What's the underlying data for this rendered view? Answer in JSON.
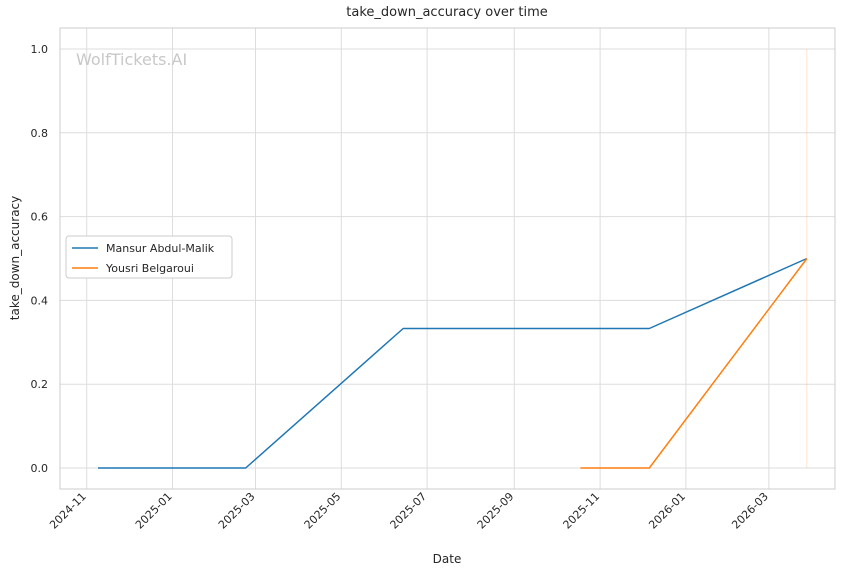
{
  "chart_data": {
    "type": "line",
    "title": "take_down_accuracy over time",
    "xlabel": "Date",
    "ylabel": "take_down_accuracy",
    "watermark": "WolfTickets.AI",
    "grid": true,
    "legend_position": "center-left",
    "xlim": [
      "2024-10-13",
      "2026-04-17"
    ],
    "ylim": [
      -0.05,
      1.05
    ],
    "x_ticks": [
      "2024-11",
      "2025-01",
      "2025-03",
      "2025-05",
      "2025-07",
      "2025-09",
      "2025-11",
      "2026-01",
      "2026-03"
    ],
    "x_tick_dates": [
      "2024-11-01",
      "2025-01-01",
      "2025-03-01",
      "2025-05-01",
      "2025-07-01",
      "2025-09-01",
      "2025-11-01",
      "2026-01-01",
      "2026-03-01"
    ],
    "y_ticks": [
      "0.0",
      "0.2",
      "0.4",
      "0.6",
      "0.8",
      "1.0"
    ],
    "y_tick_values": [
      0.0,
      0.2,
      0.4,
      0.6,
      0.8,
      1.0
    ],
    "series": [
      {
        "name": "Mansur Abdul-Malik",
        "color": "#1f77b4",
        "points": [
          {
            "x": "2024-11-09",
            "y": 0.0
          },
          {
            "x": "2025-02-22",
            "y": 0.0
          },
          {
            "x": "2025-06-14",
            "y": 0.333
          },
          {
            "x": "2025-12-06",
            "y": 0.333
          },
          {
            "x": "2026-03-28",
            "y": 0.5
          }
        ]
      },
      {
        "name": "Yousri Belgaroui",
        "color": "#ff7f0e",
        "points": [
          {
            "x": "2025-10-18",
            "y": 0.0
          },
          {
            "x": "2025-12-06",
            "y": 0.0
          },
          {
            "x": "2026-03-28",
            "y": 0.5
          }
        ]
      }
    ]
  }
}
